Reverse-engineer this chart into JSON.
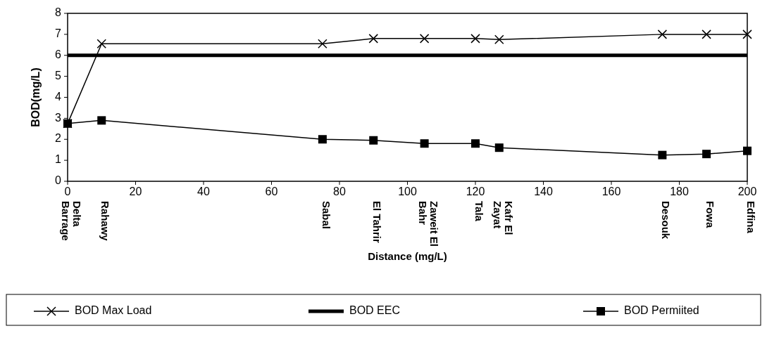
{
  "chart_data": {
    "type": "line",
    "xlabel": "Distance (mg/L)",
    "ylabel": "BOD(mg/L)",
    "xlim": [
      0,
      200
    ],
    "xticks": [
      0,
      20,
      40,
      60,
      80,
      100,
      120,
      140,
      160,
      180,
      200
    ],
    "ylim": [
      0,
      8
    ],
    "yticks": [
      0,
      1,
      2,
      3,
      4,
      5,
      6,
      7,
      8
    ],
    "grid": false,
    "legend": "bottom",
    "series": [
      {
        "name": "BOD Max Load",
        "color": "#000000",
        "marker": "cross",
        "x": [
          0,
          10,
          75,
          90,
          105,
          120,
          127,
          175,
          188,
          200
        ],
        "values": [
          2.75,
          6.55,
          6.55,
          6.8,
          6.8,
          6.8,
          6.75,
          7.0,
          7.0,
          7.0
        ]
      },
      {
        "name": "BOD Permiited",
        "color": "#000000",
        "marker": "square",
        "x": [
          0,
          10,
          75,
          90,
          105,
          120,
          127,
          175,
          188,
          200
        ],
        "values": [
          2.75,
          2.9,
          2.0,
          1.95,
          1.8,
          1.8,
          1.6,
          1.25,
          1.3,
          1.45
        ]
      }
    ],
    "ref_lines": [
      {
        "axis": "y",
        "value": 6,
        "label": "BOD EEC",
        "color": "#000000"
      }
    ],
    "annotations": [
      "Delta Barrage",
      "Rahawy",
      "Sabal",
      "El Tahrir",
      "Zaweit El Bahr",
      "Tala",
      "Kafr El Zayat",
      "Desouk",
      "Fowa",
      "Edfina"
    ]
  }
}
